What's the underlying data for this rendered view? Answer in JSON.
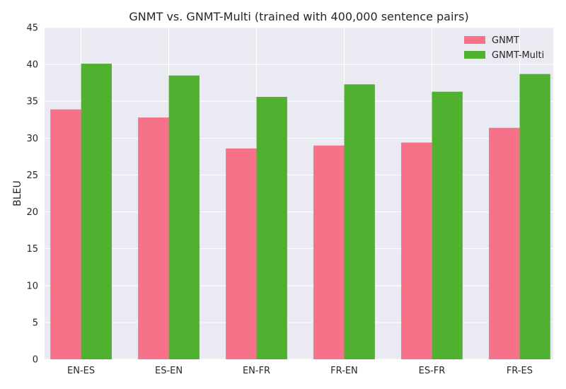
{
  "chart_data": {
    "type": "bar",
    "title": "GNMT vs. GNMT-Multi (trained with 400,000 sentence pairs)",
    "xlabel": "",
    "ylabel": "BLEU",
    "categories": [
      "EN-ES",
      "ES-EN",
      "EN-FR",
      "FR-EN",
      "ES-FR",
      "FR-ES"
    ],
    "series": [
      {
        "name": "GNMT",
        "color": "#f77189",
        "values": [
          33.9,
          32.8,
          28.6,
          29.0,
          29.4,
          31.4
        ]
      },
      {
        "name": "GNMT-Multi",
        "color": "#50b131",
        "values": [
          40.1,
          38.5,
          35.6,
          37.3,
          36.3,
          38.7
        ]
      }
    ],
    "ylim": [
      0,
      45
    ],
    "yticks": [
      0,
      5,
      10,
      15,
      20,
      25,
      30,
      35,
      40,
      45
    ],
    "grid": true,
    "legend_position": "top-right",
    "background_color": "#eaeaf2",
    "grid_color": "#ffffff"
  }
}
